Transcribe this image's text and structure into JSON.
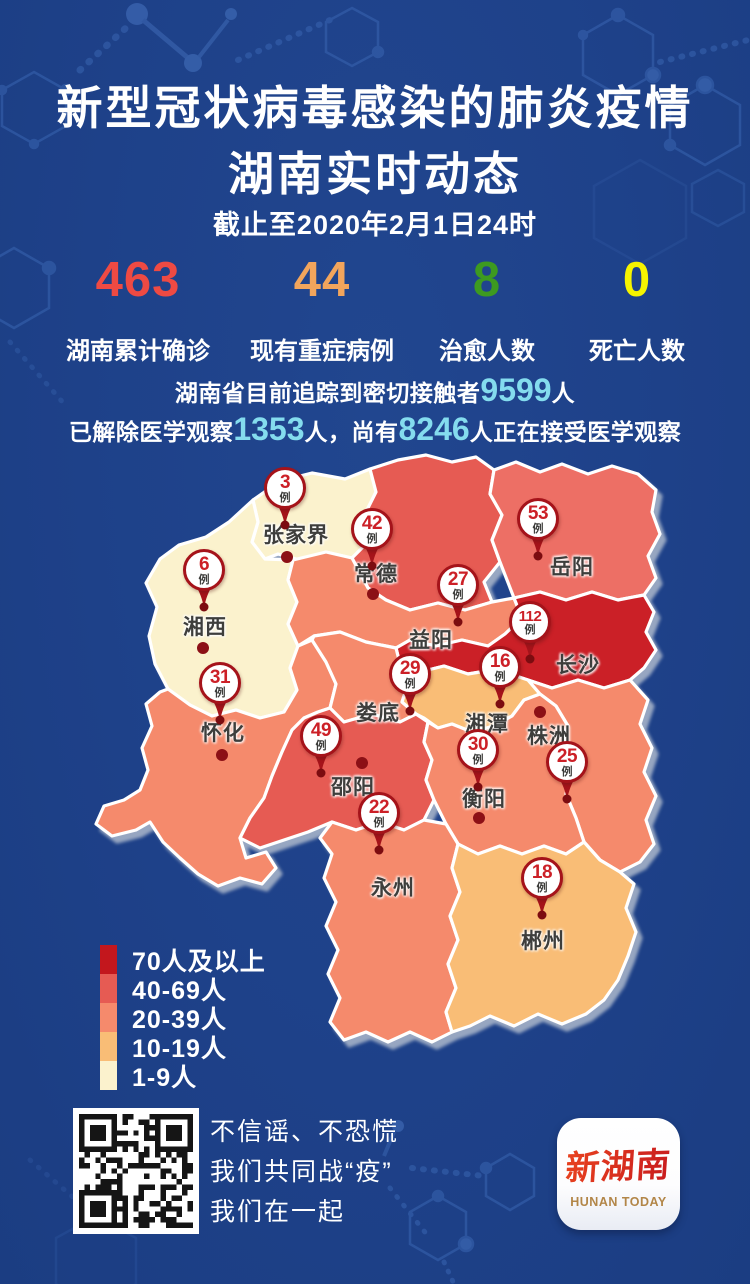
{
  "title": {
    "line1": "新型冠状病毒感染的肺炎疫情",
    "line2": "湖南实时动态",
    "asof": "截止至2020年2月1日24时"
  },
  "stats": [
    {
      "value": "463",
      "label": "湖南累计确诊",
      "color": "#ee4a43"
    },
    {
      "value": "44",
      "label": "现有重症病例",
      "color": "#f2a55c"
    },
    {
      "value": "8",
      "label": "治愈人数",
      "color": "#3d9a20"
    },
    {
      "value": "0",
      "label": "死亡人数",
      "color": "#f6f400"
    }
  ],
  "tracking": {
    "highlight_color": "#84dcee",
    "l1_pre": "湖南省目前追踪到密切接触者",
    "l1_num": "9599",
    "l1_unit": "人",
    "l2_pre": "已解除医学观察",
    "l2_num1": "1353",
    "l2_mid": "人，尚有",
    "l2_num2": "8246",
    "l2_post": "人正在接受医学观察"
  },
  "map": {
    "unit": "例",
    "colors": {
      "pin_ring": "#a5131a",
      "pin_number": "#cc2027",
      "pin_unit_text": "#3d3d3b",
      "pin_tip": "#7c0c10",
      "city_dot": "#8c1016",
      "city_label": "#3e3e3c"
    },
    "regions": [
      {
        "id": "zhangjiajie",
        "name": "张家界",
        "value": "3",
        "fill": "#fbf2cd",
        "pin": [
          285,
          488
        ],
        "label": [
          296,
          532
        ],
        "dot": [
          287,
          557
        ]
      },
      {
        "id": "xiangxi",
        "name": "湘西",
        "value": "6",
        "fill": "#fbf2cd",
        "pin": [
          204,
          570
        ],
        "label": [
          205,
          624
        ],
        "dot": [
          203,
          648
        ]
      },
      {
        "id": "changde",
        "name": "常德",
        "value": "42",
        "fill": "#e65b53",
        "pin": [
          372,
          529
        ],
        "label": [
          376,
          571
        ],
        "dot": [
          373,
          594
        ]
      },
      {
        "id": "yueyang",
        "name": "岳阳",
        "value": "53",
        "fill": "#ed6f65",
        "pin": [
          538,
          519
        ],
        "label": [
          572,
          564
        ],
        "dot": null
      },
      {
        "id": "yiyang",
        "name": "益阳",
        "value": "27",
        "fill": "#f58a6c",
        "pin": [
          458,
          585
        ],
        "label": [
          431,
          637
        ],
        "dot": null
      },
      {
        "id": "changsha",
        "name": "长沙",
        "value": "112",
        "fill": "#cb2027",
        "pin": [
          530,
          622
        ],
        "label": [
          578,
          662
        ],
        "dot": null
      },
      {
        "id": "huaihua",
        "name": "怀化",
        "value": "31",
        "fill": "#f58a6c",
        "pin": [
          220,
          683
        ],
        "label": [
          223,
          730
        ],
        "dot": [
          222,
          755
        ]
      },
      {
        "id": "loudi",
        "name": "娄底",
        "value": "29",
        "fill": "#f58a6c",
        "pin": [
          410,
          674
        ],
        "label": [
          378,
          710
        ],
        "dot": null
      },
      {
        "id": "xiangtan",
        "name": "湘潭",
        "value": "16",
        "fill": "#f9bd76",
        "pin": [
          500,
          667
        ],
        "label": [
          487,
          721
        ],
        "dot": null
      },
      {
        "id": "zhuzhou",
        "name": "株洲",
        "value": "25",
        "fill": "#f58a6c",
        "pin": [
          567,
          762
        ],
        "label": [
          549,
          733
        ],
        "dot": [
          540,
          712
        ]
      },
      {
        "id": "shaoyang",
        "name": "邵阳",
        "value": "49",
        "fill": "#e65b53",
        "pin": [
          321,
          736
        ],
        "label": [
          353,
          784
        ],
        "dot": [
          362,
          763
        ]
      },
      {
        "id": "hengyang",
        "name": "衡阳",
        "value": "30",
        "fill": "#f58a6c",
        "pin": [
          478,
          750
        ],
        "label": [
          484,
          796
        ],
        "dot": [
          479,
          818
        ]
      },
      {
        "id": "yongzhou",
        "name": "永州",
        "value": "22",
        "fill": "#f58a6c",
        "pin": [
          379,
          813
        ],
        "label": [
          393,
          885
        ],
        "dot": null
      },
      {
        "id": "chenzhou",
        "name": "郴州",
        "value": "18",
        "fill": "#f9bd76",
        "pin": [
          542,
          878
        ],
        "label": [
          543,
          938
        ],
        "dot": null
      }
    ]
  },
  "legend": {
    "items": [
      {
        "label": "70人及以上",
        "color": "#c3171d"
      },
      {
        "label": "40-69人",
        "color": "#e65b53"
      },
      {
        "label": "20-39人",
        "color": "#f58a6c"
      },
      {
        "label": "10-19人",
        "color": "#f9bd76"
      },
      {
        "label": "1-9人",
        "color": "#fbf2cd"
      }
    ]
  },
  "footer": {
    "slogan_lines": [
      "不信谣、不恐慌",
      "我们共同战“疫”",
      "我们在一起"
    ],
    "logo": {
      "cn": "新湖南",
      "en": "HUNAN TODAY"
    }
  },
  "chart_data": {
    "type": "heatmap",
    "subtype": "choropleth-map",
    "title": "新型冠状病毒感染的肺炎疫情 湖南实时动态",
    "asof": "截止至2020年2月1日24时",
    "unit": "例",
    "categories": [
      "长沙",
      "岳阳",
      "邵阳",
      "常德",
      "怀化",
      "衡阳",
      "娄底",
      "益阳",
      "株洲",
      "永州",
      "郴州",
      "湘潭",
      "湘西",
      "张家界"
    ],
    "values": [
      112,
      53,
      49,
      42,
      31,
      30,
      29,
      27,
      25,
      22,
      18,
      16,
      6,
      3
    ],
    "legend_bands": [
      {
        "label": "70人及以上",
        "color": "#c3171d"
      },
      {
        "label": "40-69人",
        "color": "#e65b53"
      },
      {
        "label": "20-39人",
        "color": "#f58a6c"
      },
      {
        "label": "10-19人",
        "color": "#f9bd76"
      },
      {
        "label": "1-9人",
        "color": "#fbf2cd"
      }
    ],
    "totals": {
      "confirmed": 463,
      "severe": 44,
      "cured": 8,
      "deaths": 0,
      "close_contacts": 9599,
      "released_observation": 1353,
      "under_observation": 8246
    }
  }
}
